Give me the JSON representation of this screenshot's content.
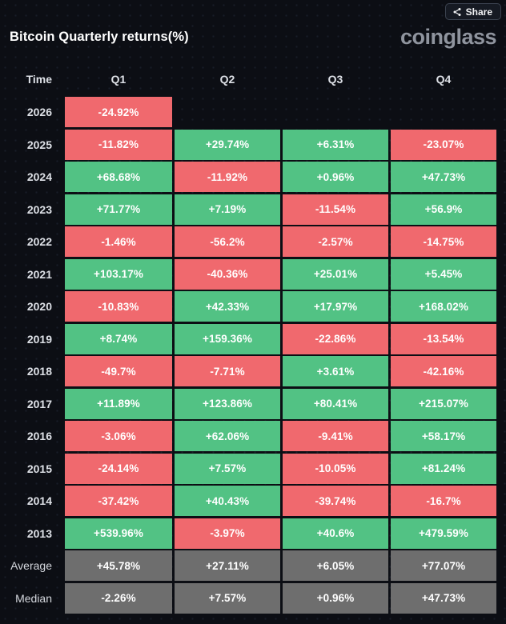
{
  "header": {
    "title": "Bitcoin Quarterly returns(%)",
    "logo_text": "coinglass",
    "share_label": "Share"
  },
  "table": {
    "columns": [
      "Time",
      "Q1",
      "Q2",
      "Q3",
      "Q4"
    ],
    "colors": {
      "positive": "#52c284",
      "negative": "#f0696e",
      "neutral": "#6e6e6e",
      "background": "#0c0e14"
    },
    "rows": [
      {
        "label": "2026",
        "summary": false,
        "values": [
          "-24.92%",
          null,
          null,
          null
        ]
      },
      {
        "label": "2025",
        "summary": false,
        "values": [
          "-11.82%",
          "+29.74%",
          "+6.31%",
          "-23.07%"
        ]
      },
      {
        "label": "2024",
        "summary": false,
        "values": [
          "+68.68%",
          "-11.92%",
          "+0.96%",
          "+47.73%"
        ]
      },
      {
        "label": "2023",
        "summary": false,
        "values": [
          "+71.77%",
          "+7.19%",
          "-11.54%",
          "+56.9%"
        ]
      },
      {
        "label": "2022",
        "summary": false,
        "values": [
          "-1.46%",
          "-56.2%",
          "-2.57%",
          "-14.75%"
        ]
      },
      {
        "label": "2021",
        "summary": false,
        "values": [
          "+103.17%",
          "-40.36%",
          "+25.01%",
          "+5.45%"
        ]
      },
      {
        "label": "2020",
        "summary": false,
        "values": [
          "-10.83%",
          "+42.33%",
          "+17.97%",
          "+168.02%"
        ]
      },
      {
        "label": "2019",
        "summary": false,
        "values": [
          "+8.74%",
          "+159.36%",
          "-22.86%",
          "-13.54%"
        ]
      },
      {
        "label": "2018",
        "summary": false,
        "values": [
          "-49.7%",
          "-7.71%",
          "+3.61%",
          "-42.16%"
        ]
      },
      {
        "label": "2017",
        "summary": false,
        "values": [
          "+11.89%",
          "+123.86%",
          "+80.41%",
          "+215.07%"
        ]
      },
      {
        "label": "2016",
        "summary": false,
        "values": [
          "-3.06%",
          "+62.06%",
          "-9.41%",
          "+58.17%"
        ]
      },
      {
        "label": "2015",
        "summary": false,
        "values": [
          "-24.14%",
          "+7.57%",
          "-10.05%",
          "+81.24%"
        ]
      },
      {
        "label": "2014",
        "summary": false,
        "values": [
          "-37.42%",
          "+40.43%",
          "-39.74%",
          "-16.7%"
        ]
      },
      {
        "label": "2013",
        "summary": false,
        "values": [
          "+539.96%",
          "-3.97%",
          "+40.6%",
          "+479.59%"
        ]
      },
      {
        "label": "Average",
        "summary": true,
        "values": [
          "+45.78%",
          "+27.11%",
          "+6.05%",
          "+77.07%"
        ]
      },
      {
        "label": "Median",
        "summary": true,
        "values": [
          "-2.26%",
          "+7.57%",
          "+0.96%",
          "+47.73%"
        ]
      }
    ]
  },
  "chart_data": {
    "type": "heatmap",
    "title": "Bitcoin Quarterly returns(%)",
    "columns": [
      "Q1",
      "Q2",
      "Q3",
      "Q4"
    ],
    "row_labels": [
      "2026",
      "2025",
      "2024",
      "2023",
      "2022",
      "2021",
      "2020",
      "2019",
      "2018",
      "2017",
      "2016",
      "2015",
      "2014",
      "2013",
      "Average",
      "Median"
    ],
    "values_percent": [
      [
        -24.92,
        null,
        null,
        null
      ],
      [
        -11.82,
        29.74,
        6.31,
        -23.07
      ],
      [
        68.68,
        -11.92,
        0.96,
        47.73
      ],
      [
        71.77,
        7.19,
        -11.54,
        56.9
      ],
      [
        -1.46,
        -56.2,
        -2.57,
        -14.75
      ],
      [
        103.17,
        -40.36,
        25.01,
        5.45
      ],
      [
        -10.83,
        42.33,
        17.97,
        168.02
      ],
      [
        8.74,
        159.36,
        -22.86,
        -13.54
      ],
      [
        -49.7,
        -7.71,
        3.61,
        -42.16
      ],
      [
        11.89,
        123.86,
        80.41,
        215.07
      ],
      [
        -3.06,
        62.06,
        -9.41,
        58.17
      ],
      [
        -24.14,
        7.57,
        -10.05,
        81.24
      ],
      [
        -37.42,
        40.43,
        -39.74,
        -16.7
      ],
      [
        539.96,
        -3.97,
        40.6,
        479.59
      ],
      [
        45.78,
        27.11,
        6.05,
        77.07
      ],
      [
        -2.26,
        7.57,
        0.96,
        47.73
      ]
    ],
    "legend": "green = positive return, red = negative return, gray = summary rows (Average/Median)",
    "source_watermark": "coinglass"
  }
}
